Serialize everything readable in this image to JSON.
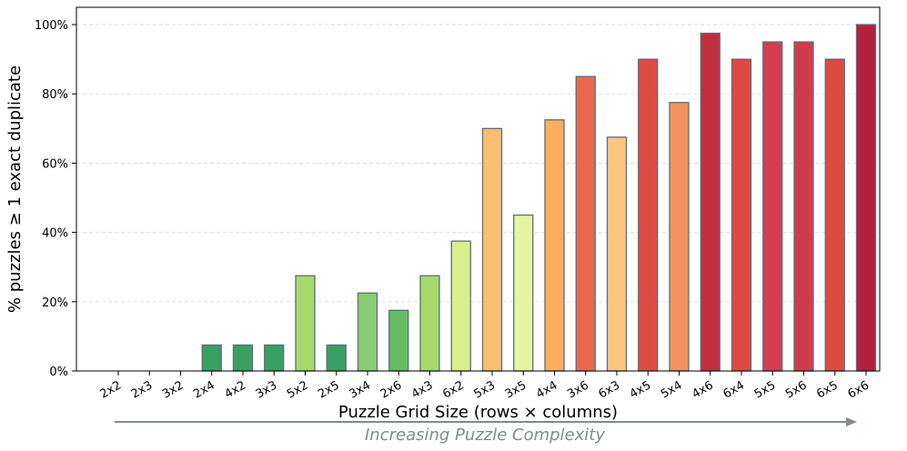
{
  "chart_data": {
    "type": "bar",
    "xlabel": "Puzzle Grid Size (rows × columns)",
    "ylabel": "% puzzles ≥ 1 exact duplicate",
    "annotation": "Increasing Puzzle Complexity",
    "ylim": [
      0,
      105
    ],
    "yticks": [
      0,
      20,
      40,
      60,
      80,
      100
    ],
    "ytick_labels": [
      "0%",
      "20%",
      "40%",
      "60%",
      "80%",
      "100%"
    ],
    "grid": "horizontal dashed",
    "categories": [
      "2x2",
      "2x3",
      "3x2",
      "2x4",
      "4x2",
      "3x3",
      "5x2",
      "2x5",
      "3x4",
      "2x6",
      "4x3",
      "6x2",
      "5x3",
      "3x5",
      "4x4",
      "3x6",
      "6x3",
      "4x5",
      "5x4",
      "4x6",
      "6x4",
      "5x5",
      "5x6",
      "6x5",
      "6x6"
    ],
    "values": [
      0,
      0,
      0,
      7.5,
      7.5,
      7.5,
      27.5,
      7.5,
      22.5,
      17.5,
      27.5,
      37.5,
      70,
      45,
      72.5,
      85,
      67.5,
      90,
      77.5,
      97.5,
      90,
      95,
      95,
      90,
      100
    ],
    "bar_colors": [
      "#1a9850",
      "#1a9850",
      "#1a9850",
      "#3a9f62",
      "#3a9f62",
      "#3a9f62",
      "#a6d96a",
      "#3a9f62",
      "#8acc74",
      "#66bd63",
      "#a6d96a",
      "#d9ef8b",
      "#fdbf6f",
      "#e6f5a3",
      "#fdae61",
      "#e8694e",
      "#fdc580",
      "#dd4a42",
      "#f4915f",
      "#c12f3e",
      "#dd4a42",
      "#d53e4f",
      "#d03d4a",
      "#dd4a42",
      "#b2213d"
    ],
    "bar_edge_color": "#5d6d7e",
    "annotation_color": "#7f8c8d"
  }
}
